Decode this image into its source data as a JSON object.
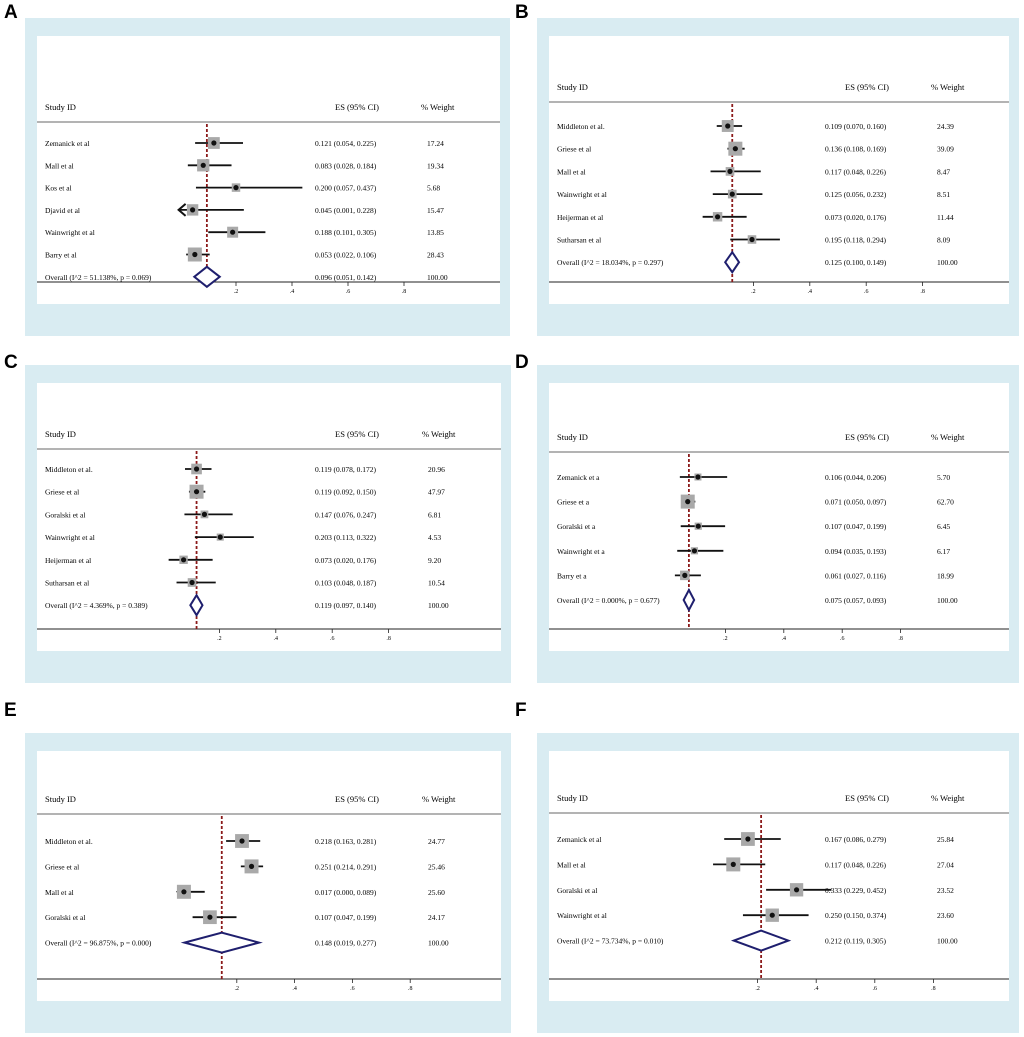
{
  "figure": {
    "panels": [
      {
        "letter": "A",
        "chart_data": {
          "type": "forest",
          "header": {
            "study": "Study ID",
            "es": "ES (95% CI)",
            "weight": "% Weight"
          },
          "studies": [
            {
              "name": "Zemanick et al",
              "es": 0.121,
              "lo": 0.054,
              "hi": 0.225,
              "ci_text": "0.121 (0.054, 0.225)",
              "weight": 17.24,
              "weight_text": "17.24"
            },
            {
              "name": "Mall et al",
              "es": 0.083,
              "lo": 0.028,
              "hi": 0.184,
              "ci_text": "0.083 (0.028, 0.184)",
              "weight": 19.34,
              "weight_text": "19.34"
            },
            {
              "name": "Kos et al",
              "es": 0.2,
              "lo": 0.057,
              "hi": 0.437,
              "ci_text": "0.200 (0.057, 0.437)",
              "weight": 5.68,
              "weight_text": "5.68"
            },
            {
              "name": "Djavid et al",
              "es": 0.045,
              "lo": 0.001,
              "hi": 0.228,
              "ci_text": "0.045 (0.001, 0.228)",
              "weight": 15.47,
              "weight_text": "15.47"
            },
            {
              "name": "Wainwright et al",
              "es": 0.188,
              "lo": 0.101,
              "hi": 0.305,
              "ci_text": "0.188 (0.101, 0.305)",
              "weight": 13.85,
              "weight_text": "13.85"
            },
            {
              "name": "Barry et al",
              "es": 0.053,
              "lo": 0.022,
              "hi": 0.106,
              "ci_text": "0.053 (0.022, 0.106)",
              "weight": 28.43,
              "weight_text": "28.43"
            }
          ],
          "overall": {
            "label": "Overall  (I^2 = 51.138%, p = 0.069)",
            "es": 0.096,
            "lo": 0.051,
            "hi": 0.142,
            "ci_text": "0.096 (0.051, 0.142)",
            "weight_text": "100.00"
          },
          "axis": {
            "ticks": [
              0.2,
              0.4,
              0.6,
              0.8
            ],
            "tick_labels": [
              ".2",
              ".4",
              ".6",
              ".8"
            ],
            "xlim": [
              -0.01,
              0.8
            ]
          }
        }
      },
      {
        "letter": "B",
        "chart_data": {
          "type": "forest",
          "header": {
            "study": "Study ID",
            "es": "ES (95% CI)",
            "weight": "% Weight"
          },
          "studies": [
            {
              "name": "Middleton et al.",
              "es": 0.109,
              "lo": 0.07,
              "hi": 0.16,
              "ci_text": "0.109 (0.070, 0.160)",
              "weight": 24.39,
              "weight_text": "24.39"
            },
            {
              "name": "Griese et al",
              "es": 0.136,
              "lo": 0.108,
              "hi": 0.169,
              "ci_text": "0.136 (0.108, 0.169)",
              "weight": 39.09,
              "weight_text": "39.09"
            },
            {
              "name": "Mall et al",
              "es": 0.117,
              "lo": 0.048,
              "hi": 0.226,
              "ci_text": "0.117 (0.048, 0.226)",
              "weight": 8.47,
              "weight_text": "8.47"
            },
            {
              "name": "Wainwright et al",
              "es": 0.125,
              "lo": 0.056,
              "hi": 0.232,
              "ci_text": "0.125 (0.056, 0.232)",
              "weight": 8.51,
              "weight_text": "8.51"
            },
            {
              "name": "Heijerman et al",
              "es": 0.073,
              "lo": 0.02,
              "hi": 0.176,
              "ci_text": "0.073 (0.020, 0.176)",
              "weight": 11.44,
              "weight_text": "11.44"
            },
            {
              "name": "Sutharsan et al",
              "es": 0.195,
              "lo": 0.118,
              "hi": 0.294,
              "ci_text": "0.195 (0.118, 0.294)",
              "weight": 8.09,
              "weight_text": "8.09"
            }
          ],
          "overall": {
            "label": "Overall  (I^2 = 18.034%, p = 0.297)",
            "es": 0.125,
            "lo": 0.1,
            "hi": 0.149,
            "ci_text": "0.125 (0.100, 0.149)",
            "weight_text": "100.00"
          },
          "axis": {
            "ticks": [
              0.2,
              0.4,
              0.6,
              0.8
            ],
            "tick_labels": [
              ".2",
              ".4",
              ".6",
              ".8"
            ],
            "xlim": [
              -0.01,
              0.8
            ]
          }
        }
      },
      {
        "letter": "C",
        "chart_data": {
          "type": "forest",
          "header": {
            "study": "Study ID",
            "es": "ES (95% CI)",
            "weight": "% Weight"
          },
          "studies": [
            {
              "name": "Middleton et al.",
              "es": 0.119,
              "lo": 0.078,
              "hi": 0.172,
              "ci_text": "0.119 (0.078, 0.172)",
              "weight": 20.96,
              "weight_text": "20.96"
            },
            {
              "name": "Griese et al",
              "es": 0.119,
              "lo": 0.092,
              "hi": 0.15,
              "ci_text": "0.119 (0.092, 0.150)",
              "weight": 47.97,
              "weight_text": "47.97"
            },
            {
              "name": "Goralski et al",
              "es": 0.147,
              "lo": 0.076,
              "hi": 0.247,
              "ci_text": "0.147 (0.076, 0.247)",
              "weight": 6.81,
              "weight_text": "6.81"
            },
            {
              "name": "Wainwright et al",
              "es": 0.203,
              "lo": 0.113,
              "hi": 0.322,
              "ci_text": "0.203 (0.113, 0.322)",
              "weight": 4.53,
              "weight_text": "4.53"
            },
            {
              "name": "Heijerman et al",
              "es": 0.073,
              "lo": 0.02,
              "hi": 0.176,
              "ci_text": "0.073 (0.020, 0.176)",
              "weight": 9.2,
              "weight_text": "9.20"
            },
            {
              "name": "Sutharsan et al",
              "es": 0.103,
              "lo": 0.048,
              "hi": 0.187,
              "ci_text": "0.103 (0.048, 0.187)",
              "weight": 10.54,
              "weight_text": "10.54"
            }
          ],
          "overall": {
            "label": "Overall  (I^2 = 4.369%, p = 0.389)",
            "es": 0.119,
            "lo": 0.097,
            "hi": 0.14,
            "ci_text": "0.119 (0.097, 0.140)",
            "weight_text": "100.00"
          },
          "axis": {
            "ticks": [
              0.2,
              0.4,
              0.6,
              0.8
            ],
            "tick_labels": [
              ".2",
              ".4",
              ".6",
              ".8"
            ],
            "xlim": [
              -0.01,
              0.8
            ]
          }
        }
      },
      {
        "letter": "D",
        "chart_data": {
          "type": "forest",
          "header": {
            "study": "Study ID",
            "es": "ES (95% CI)",
            "weight": "% Weight"
          },
          "studies": [
            {
              "name": "Zemanick et a",
              "es": 0.106,
              "lo": 0.044,
              "hi": 0.206,
              "ci_text": "0.106 (0.044, 0.206)",
              "weight": 5.7,
              "weight_text": "5.70"
            },
            {
              "name": "Griese et a",
              "es": 0.071,
              "lo": 0.05,
              "hi": 0.097,
              "ci_text": "0.071 (0.050, 0.097)",
              "weight": 62.7,
              "weight_text": "62.70"
            },
            {
              "name": "Goralski et a",
              "es": 0.107,
              "lo": 0.047,
              "hi": 0.199,
              "ci_text": "0.107 (0.047, 0.199)",
              "weight": 6.45,
              "weight_text": "6.45"
            },
            {
              "name": "Wainwright et a",
              "es": 0.094,
              "lo": 0.035,
              "hi": 0.193,
              "ci_text": "0.094 (0.035, 0.193)",
              "weight": 6.17,
              "weight_text": "6.17"
            },
            {
              "name": "Barry et a",
              "es": 0.061,
              "lo": 0.027,
              "hi": 0.116,
              "ci_text": "0.061 (0.027, 0.116)",
              "weight": 18.99,
              "weight_text": "18.99"
            }
          ],
          "overall": {
            "label": "Overall  (I^2 = 0.000%, p = 0.677)",
            "es": 0.075,
            "lo": 0.057,
            "hi": 0.093,
            "ci_text": "0.075 (0.057, 0.093)",
            "weight_text": "100.00"
          },
          "axis": {
            "ticks": [
              0.2,
              0.4,
              0.6,
              0.8
            ],
            "tick_labels": [
              ".2",
              ".4",
              ".6",
              ".8"
            ],
            "xlim": [
              -0.01,
              0.8
            ]
          }
        }
      },
      {
        "letter": "E",
        "chart_data": {
          "type": "forest",
          "header": {
            "study": "Study ID",
            "es": "ES (95% CI)",
            "weight": "% Weight"
          },
          "studies": [
            {
              "name": "Middleton et al.",
              "es": 0.218,
              "lo": 0.163,
              "hi": 0.281,
              "ci_text": "0.218 (0.163, 0.281)",
              "weight": 24.77,
              "weight_text": "24.77"
            },
            {
              "name": "Griese et al",
              "es": 0.251,
              "lo": 0.214,
              "hi": 0.291,
              "ci_text": "0.251 (0.214, 0.291)",
              "weight": 25.46,
              "weight_text": "25.46"
            },
            {
              "name": "Mall et al",
              "es": 0.017,
              "lo": 0.0,
              "hi": 0.089,
              "ci_text": "0.017 (0.000, 0.089)",
              "weight": 25.6,
              "weight_text": "25.60"
            },
            {
              "name": "Goralski et al",
              "es": 0.107,
              "lo": 0.047,
              "hi": 0.199,
              "ci_text": "0.107 (0.047, 0.199)",
              "weight": 24.17,
              "weight_text": "24.17"
            }
          ],
          "overall": {
            "label": "Overall  (I^2 = 96.875%, p = 0.000)",
            "es": 0.148,
            "lo": 0.019,
            "hi": 0.277,
            "ci_text": "0.148 (0.019, 0.277)",
            "weight_text": "100.00"
          },
          "axis": {
            "ticks": [
              0.2,
              0.4,
              0.6,
              0.8
            ],
            "tick_labels": [
              ".2",
              ".4",
              ".6",
              ".8"
            ],
            "xlim": [
              -0.01,
              0.8
            ]
          }
        }
      },
      {
        "letter": "F",
        "chart_data": {
          "type": "forest",
          "header": {
            "study": "Study ID",
            "es": "ES (95% CI)",
            "weight": "% Weight"
          },
          "studies": [
            {
              "name": "Zemanick et al",
              "es": 0.167,
              "lo": 0.086,
              "hi": 0.279,
              "ci_text": "0.167 (0.086, 0.279)",
              "weight": 25.84,
              "weight_text": "25.84"
            },
            {
              "name": "Mall et al",
              "es": 0.117,
              "lo": 0.048,
              "hi": 0.226,
              "ci_text": "0.117 (0.048, 0.226)",
              "weight": 27.04,
              "weight_text": "27.04"
            },
            {
              "name": "Goralski et al",
              "es": 0.333,
              "lo": 0.229,
              "hi": 0.452,
              "ci_text": "0.333 (0.229, 0.452)",
              "weight": 23.52,
              "weight_text": "23.52"
            },
            {
              "name": "Wainwright et al",
              "es": 0.25,
              "lo": 0.15,
              "hi": 0.374,
              "ci_text": "0.250 (0.150, 0.374)",
              "weight": 23.6,
              "weight_text": "23.60"
            }
          ],
          "overall": {
            "label": "Overall  (I^2 = 73.734%, p = 0.010)",
            "es": 0.212,
            "lo": 0.119,
            "hi": 0.305,
            "ci_text": "0.212 (0.119, 0.305)",
            "weight_text": "100.00"
          },
          "axis": {
            "ticks": [
              0.2,
              0.4,
              0.6,
              0.8
            ],
            "tick_labels": [
              ".2",
              ".4",
              ".6",
              ".8"
            ],
            "xlim": [
              -0.01,
              0.8
            ]
          }
        }
      }
    ],
    "colors": {
      "panel_bg": "#d9ecf2",
      "plot_bg": "#ffffff",
      "null_line": "#8b1a1a",
      "diamond": "#1f1f6e",
      "marker": "#111111",
      "weight_box": "#a9a9a9"
    }
  }
}
